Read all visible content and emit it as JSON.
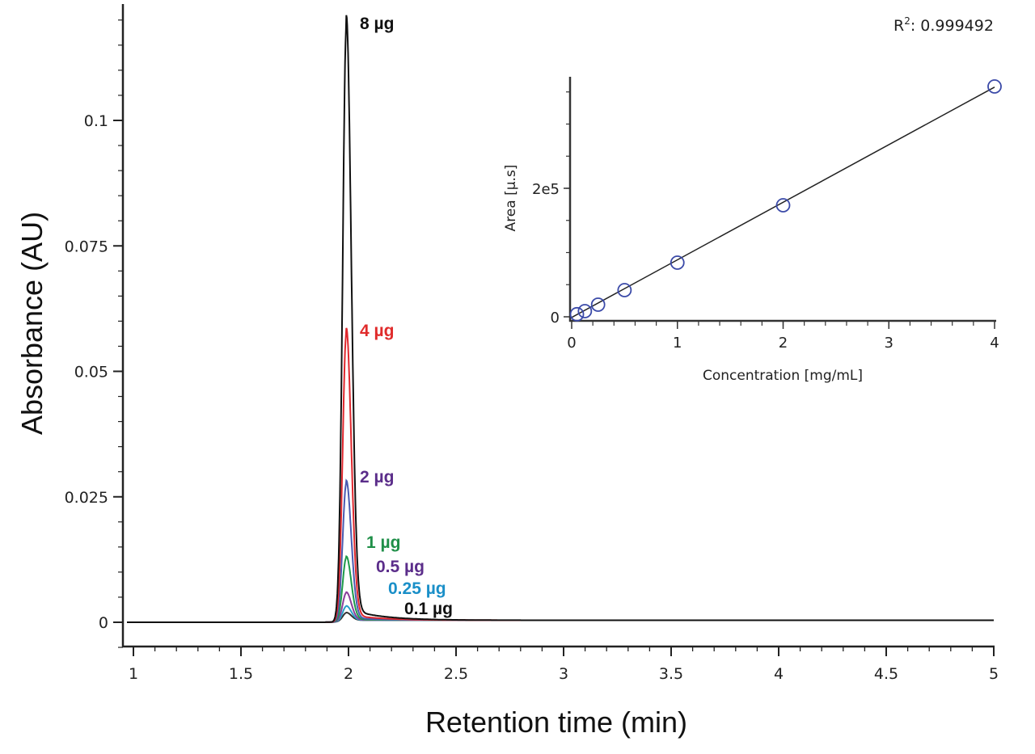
{
  "chart_data": [
    {
      "type": "line",
      "xlabel": "Retention time (min)",
      "ylabel": "Absorbance (AU)",
      "xlim": [
        0.95,
        5.0
      ],
      "ylim": [
        -0.005,
        0.123
      ],
      "xticks": [
        "1",
        "1.5",
        "2",
        "2.5",
        "3",
        "3.5",
        "4",
        "4.5",
        "5"
      ],
      "yticks": [
        "0",
        "0.025",
        "0.05",
        "0.075",
        "0.1"
      ],
      "grid": false,
      "peak_retention_time": 1.99,
      "series": [
        {
          "name": "8 µg",
          "peak_height": 0.1183,
          "color": "#111111",
          "label_color": "#111111"
        },
        {
          "name": "4 µg",
          "peak_height": 0.0572,
          "color": "#e0282e",
          "label_color": "#e02b2b"
        },
        {
          "name": "2 µg",
          "peak_height": 0.0274,
          "color": "#4a5bb0",
          "label_color": "#5b2d8a"
        },
        {
          "name": "1 µg",
          "peak_height": 0.0126,
          "color": "#1e9a4a",
          "label_color": "#1f8f48"
        },
        {
          "name": "0.5 µg",
          "peak_height": 0.0056,
          "color": "#8a3f9a",
          "label_color": "#5b2d8a"
        },
        {
          "name": "0.25 µg",
          "peak_height": 0.0029,
          "color": "#2aa0c8",
          "label_color": "#1a8fc8"
        },
        {
          "name": "0.1 µg",
          "peak_height": 0.0016,
          "color": "#333333",
          "label_color": "#111111"
        }
      ]
    },
    {
      "type": "scatter",
      "xlabel": "Concentration [mg/mL]",
      "ylabel": "Area [µ.s]",
      "xlim": [
        0,
        4
      ],
      "ylim": [
        -8000,
        370000
      ],
      "xticks": [
        "0",
        "1",
        "2",
        "3",
        "4"
      ],
      "yticks": [
        "0",
        "2e5"
      ],
      "annotation": {
        "label": "R",
        "superscript": "2",
        "value": ": 0.999492"
      },
      "points": {
        "x": [
          0.05,
          0.125,
          0.25,
          0.5,
          1,
          2,
          4
        ],
        "y": [
          4000,
          8800,
          18900,
          41500,
          84300,
          173600,
          358500
        ]
      },
      "fit": {
        "x": [
          0,
          4
        ],
        "y": [
          -1000,
          357500
        ]
      },
      "marker_color": "#3b4aa8"
    }
  ]
}
